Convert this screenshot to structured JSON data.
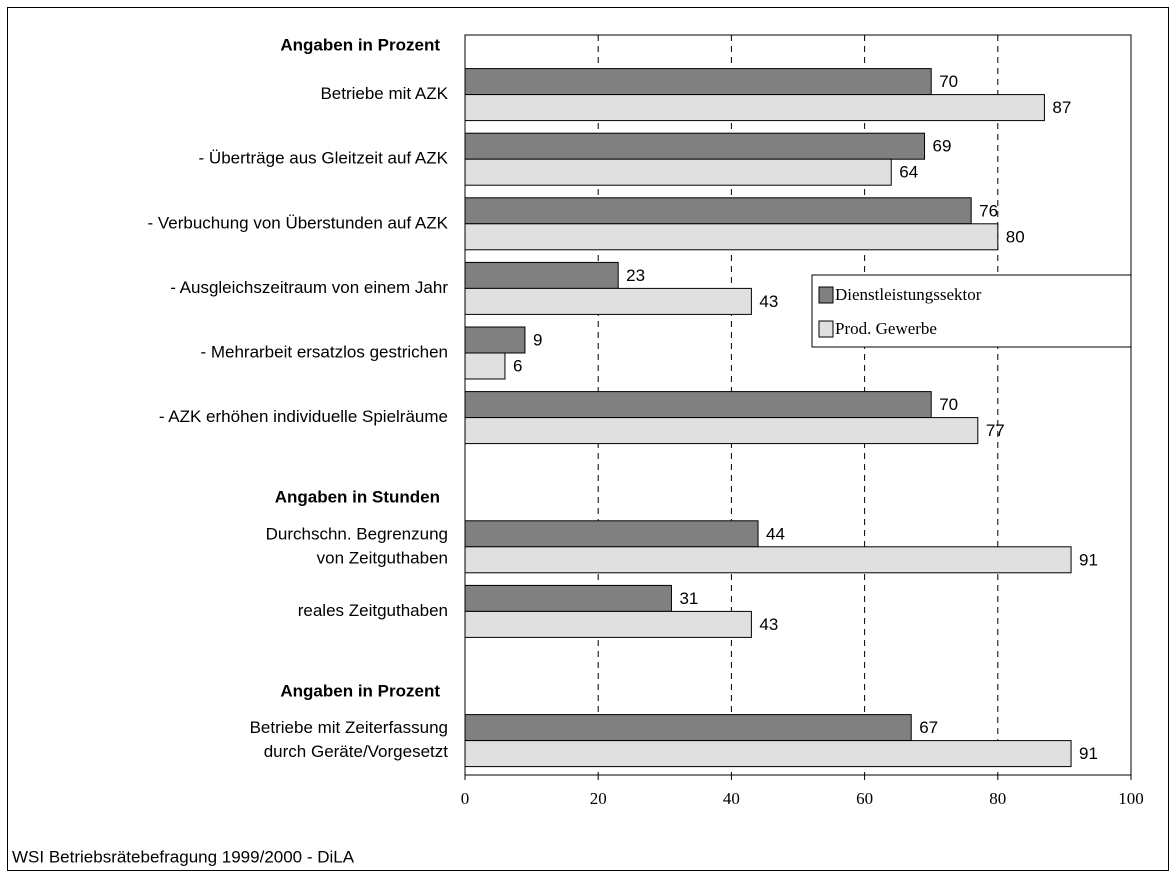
{
  "chart_data": {
    "type": "bar",
    "orientation": "horizontal",
    "categories": [
      [
        "Angaben in Prozent"
      ],
      [
        "Betriebe mit AZK"
      ],
      [
        "- Überträge aus Gleitzeit auf AZK"
      ],
      [
        "- Verbuchung von Überstunden auf AZK"
      ],
      [
        "- Ausgleichszeitraum von einem Jahr"
      ],
      [
        "- Mehrarbeit ersatzlos gestrichen"
      ],
      [
        "- AZK erhöhen individuelle Spielräume"
      ],
      [
        "Angaben in Stunden"
      ],
      [
        "Durchschn. Begrenzung",
        "von Zeitguthaben"
      ],
      [
        "reales Zeitguthaben"
      ],
      [
        "Angaben in Prozent"
      ],
      [
        "Betriebe mit Zeiterfassung",
        "durch Geräte/Vorgesetzt"
      ]
    ],
    "series": [
      {
        "name": "Dienstleistungssektor",
        "color": "#808080",
        "values": [
          null,
          70,
          69,
          76,
          23,
          9,
          70,
          null,
          44,
          31,
          null,
          67
        ]
      },
      {
        "name": "Prod. Gewerbe",
        "color": "#e0e0e0",
        "values": [
          null,
          87,
          64,
          80,
          43,
          6,
          77,
          null,
          91,
          43,
          null,
          91
        ]
      }
    ],
    "xlim": [
      0,
      100
    ],
    "xticks": [
      0,
      20,
      40,
      60,
      80,
      100
    ],
    "grid": true,
    "legend": "center right",
    "source": "WSI Betriebsrätebefragung 1999/2000 - DiLA"
  }
}
